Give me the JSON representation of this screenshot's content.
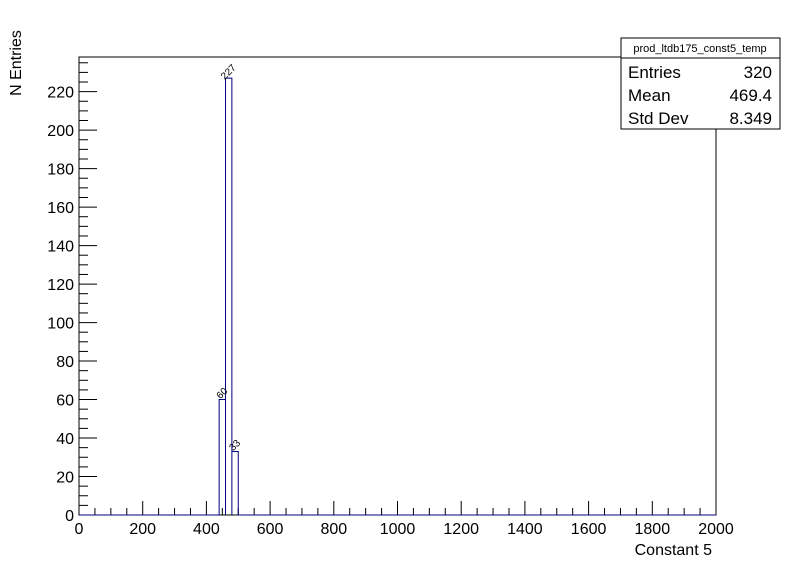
{
  "chart_data": {
    "type": "bar",
    "histogram": true,
    "xlabel": "Constant 5",
    "ylabel": "N Entries",
    "xlim": [
      0,
      2000
    ],
    "ylim": [
      0,
      238
    ],
    "bin_width": 20,
    "bins": [
      {
        "x_low": 440,
        "x_high": 460,
        "value": 60
      },
      {
        "x_low": 460,
        "x_high": 480,
        "value": 227
      },
      {
        "x_low": 480,
        "x_high": 500,
        "value": 33
      }
    ],
    "x_ticks": [
      0,
      200,
      400,
      600,
      800,
      1000,
      1200,
      1400,
      1600,
      1800,
      2000
    ],
    "y_ticks": [
      0,
      20,
      40,
      60,
      80,
      100,
      120,
      140,
      160,
      180,
      200,
      220
    ],
    "line_color": "#000080",
    "grid": false,
    "legend": "none",
    "stats_box": {
      "title": "prod_ltdb175_const5_temp",
      "rows": [
        {
          "label": "Entries",
          "value": "320"
        },
        {
          "label": "Mean",
          "value": "469.4"
        },
        {
          "label": "Std Dev",
          "value": "8.349"
        }
      ]
    }
  }
}
